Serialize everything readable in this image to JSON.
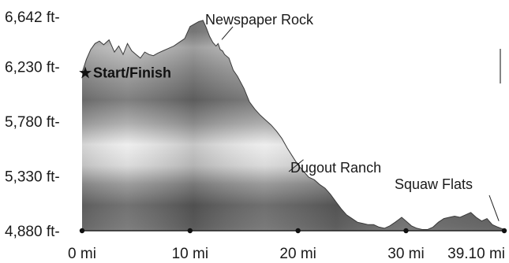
{
  "chart_data": {
    "type": "area",
    "title": "",
    "xlabel": "",
    "ylabel": "",
    "x_unit": "mi",
    "y_unit": "ft",
    "xlim": [
      0,
      39.1
    ],
    "ylim": [
      4880,
      6642
    ],
    "x_ticks": [
      {
        "value": 0,
        "label": "0 mi"
      },
      {
        "value": 10,
        "label": "10 mi"
      },
      {
        "value": 20,
        "label": "20 mi"
      },
      {
        "value": 30,
        "label": "30 mi"
      },
      {
        "value": 39.1,
        "label": "39.10 mi"
      }
    ],
    "y_ticks": [
      {
        "value": 6642,
        "label": "6,642 ft-"
      },
      {
        "value": 6230,
        "label": "6,230 ft-"
      },
      {
        "value": 5780,
        "label": "5,780 ft-"
      },
      {
        "value": 5330,
        "label": "5,330 ft-"
      },
      {
        "value": 4880,
        "label": "4,880 ft-"
      }
    ],
    "series": [
      {
        "x": [
          0,
          0.4,
          0.8,
          1.2,
          1.6,
          2.0,
          2.5,
          3.0,
          3.4,
          3.8,
          4.2,
          4.6,
          5.0,
          5.4,
          5.8,
          6.2,
          6.6,
          7.0,
          7.5,
          8.0,
          8.5,
          9.0,
          9.5,
          10.0,
          10.4,
          10.8,
          11.2,
          11.5,
          11.8,
          12.1,
          12.4,
          12.6,
          12.8,
          13.0,
          13.2,
          13.6,
          14.0,
          14.4,
          15.0,
          15.5,
          16.0,
          16.5,
          17.0,
          17.5,
          18.0,
          18.5,
          19.0,
          19.5,
          20.0,
          20.5,
          21.0,
          21.5,
          22.0,
          22.5,
          23.0,
          23.5,
          24.0,
          24.5,
          25.0,
          25.5,
          26.0,
          26.5,
          27.0,
          27.5,
          28.0,
          28.5,
          29.0,
          29.3,
          29.6,
          30.0,
          30.5,
          31.0,
          31.5,
          32.0,
          32.5,
          33.0,
          33.5,
          34.0,
          34.5,
          35.0,
          35.5,
          36.0,
          36.5,
          37.0,
          37.5,
          38.0,
          38.5,
          39.1
        ],
        "y": [
          6180,
          6290,
          6370,
          6420,
          6440,
          6410,
          6450,
          6350,
          6400,
          6330,
          6420,
          6360,
          6330,
          6300,
          6350,
          6330,
          6320,
          6340,
          6360,
          6380,
          6400,
          6430,
          6460,
          6560,
          6580,
          6600,
          6610,
          6550,
          6480,
          6430,
          6400,
          6420,
          6370,
          6360,
          6330,
          6300,
          6200,
          6150,
          6050,
          5940,
          5880,
          5830,
          5790,
          5750,
          5700,
          5640,
          5560,
          5490,
          5420,
          5370,
          5320,
          5300,
          5260,
          5230,
          5180,
          5120,
          5060,
          5010,
          4980,
          4950,
          4940,
          4930,
          4930,
          4910,
          4900,
          4920,
          4950,
          4970,
          4990,
          4960,
          4920,
          4900,
          4890,
          4890,
          4910,
          4950,
          4980,
          4990,
          5000,
          4990,
          5010,
          5030,
          4990,
          4960,
          4980,
          4930,
          4910,
          4890
        ]
      }
    ],
    "markers": [
      {
        "x": 0
      },
      {
        "x": 10
      },
      {
        "x": 20
      },
      {
        "x": 30
      },
      {
        "x": 39.1
      }
    ],
    "annotations": [
      {
        "text": "Start/Finish",
        "x": 0,
        "y": 6180,
        "style": "bold-star"
      },
      {
        "text": "Newspaper Rock",
        "x": 12.5,
        "y": 6400
      },
      {
        "text": "Dugout Ranch",
        "x": 20.5,
        "y": 5400
      },
      {
        "text": "Squaw Flats",
        "x": 38.6,
        "y": 4960
      }
    ],
    "star_glyph": "★",
    "grid": false,
    "legend": "none",
    "colors": {
      "band_dark": "#6f6f6f",
      "band_mid": "#a8a8a8",
      "band_light": "#e4e4e4",
      "baseline": "#222222",
      "text": "#1a1a1a"
    }
  }
}
